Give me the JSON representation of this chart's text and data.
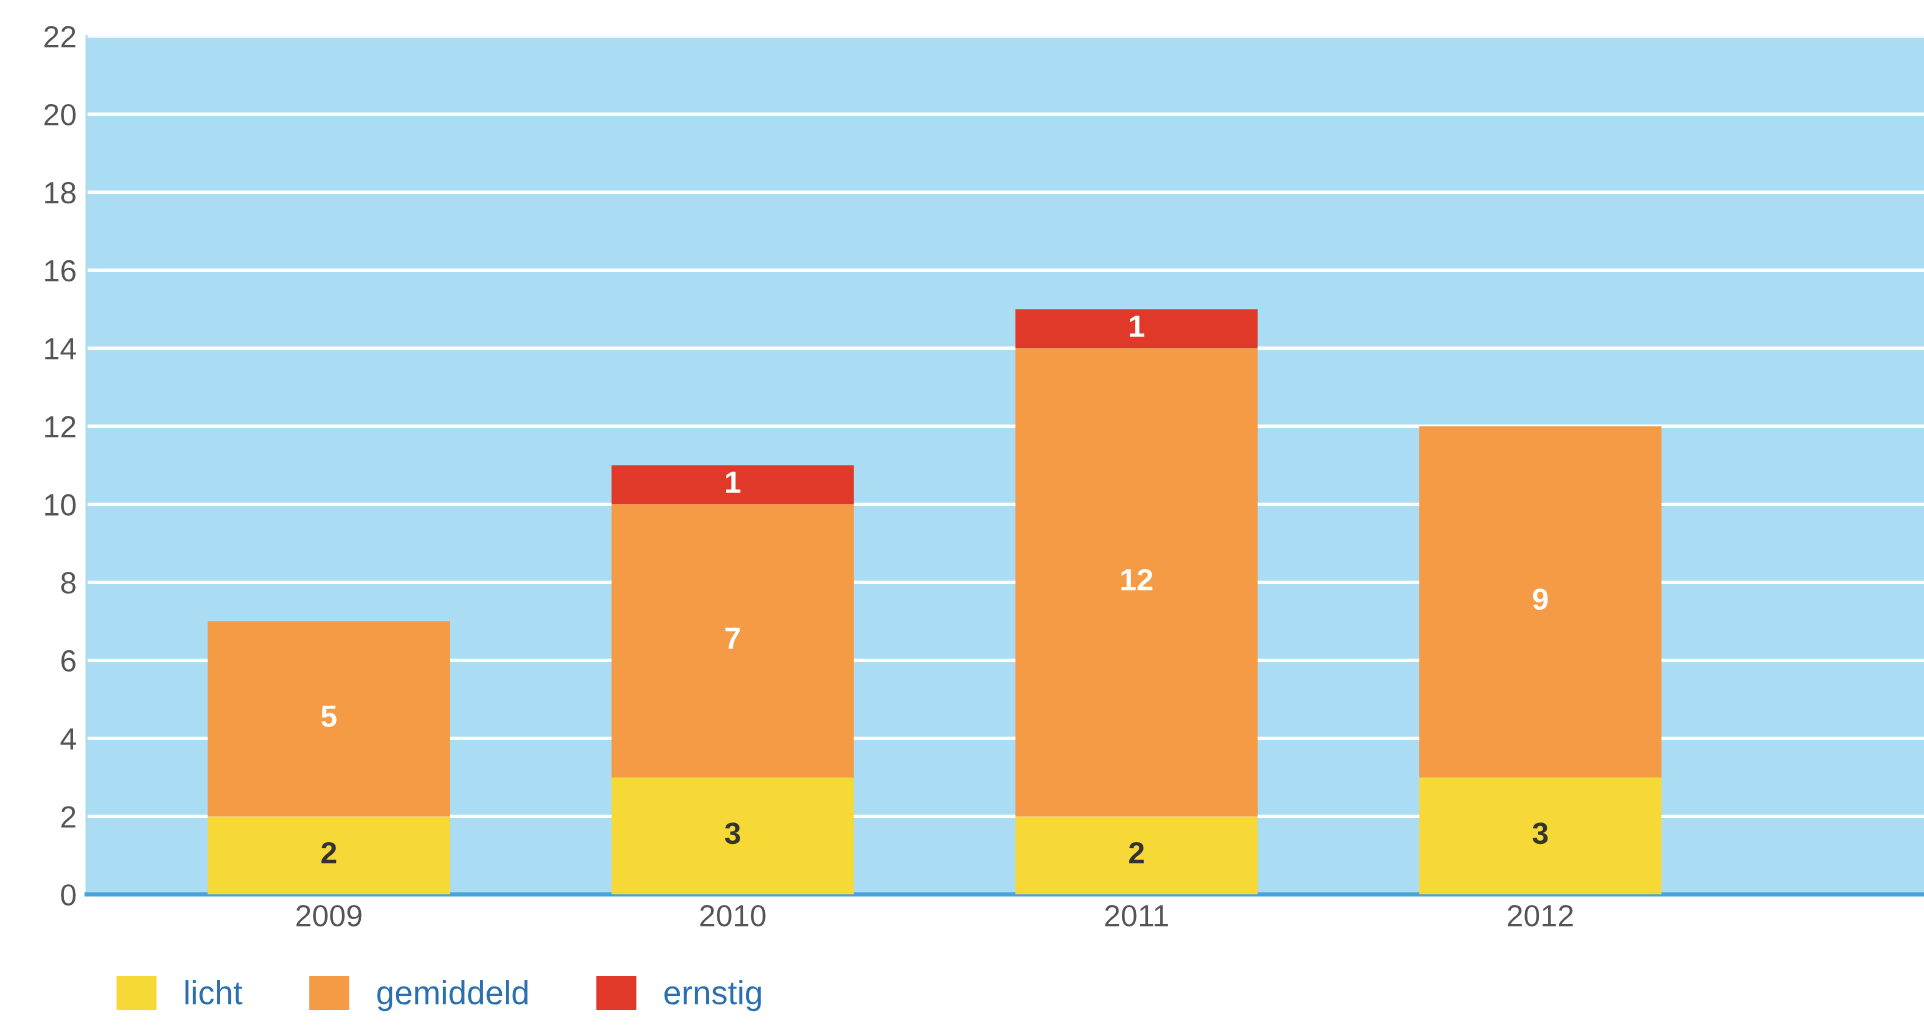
{
  "chart_data": {
    "type": "bar",
    "stacked": true,
    "categories": [
      "2009",
      "2010",
      "2011",
      "2012"
    ],
    "series": [
      {
        "name": "licht",
        "color": "#f6d837",
        "values": [
          2,
          3,
          2,
          3
        ]
      },
      {
        "name": "gemiddeld",
        "color": "#f59a45",
        "values": [
          5,
          7,
          12,
          9
        ]
      },
      {
        "name": "ernstig",
        "color": "#e0392a",
        "values": [
          null,
          1,
          1,
          null
        ]
      }
    ],
    "ylim": [
      0,
      22
    ],
    "yticks": [
      0,
      2,
      4,
      6,
      8,
      10,
      12,
      14,
      16,
      18,
      20,
      22
    ],
    "grid": "y",
    "legend": "bottom left",
    "data_labels": true
  }
}
